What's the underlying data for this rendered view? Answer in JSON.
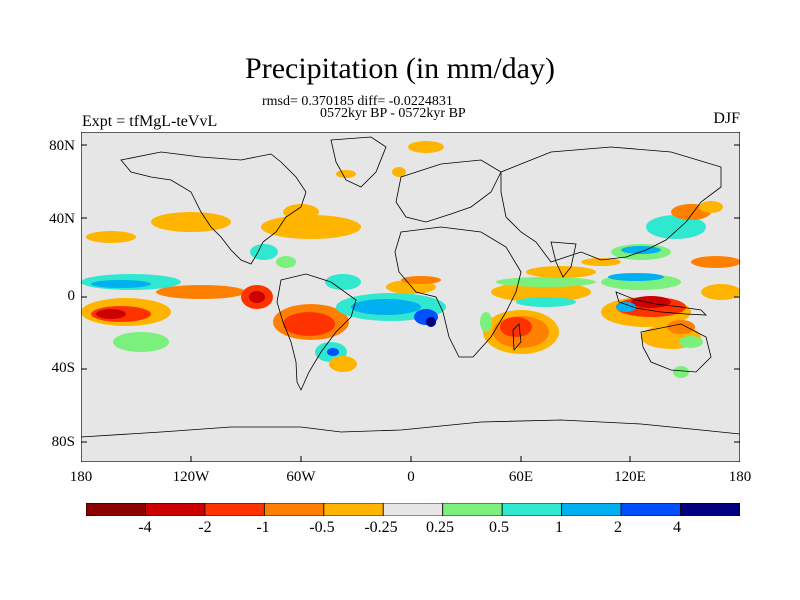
{
  "title": "Precipitation (in mm/day)",
  "stats_line": "rmsd= 0.370185 diff= -0.0224831",
  "period_line": "0572kyr BP - 0572kyr BP",
  "expt_label": "Expt = tfMgL-teVvL",
  "season_label": "DJF",
  "lat_ticks": [
    "80N",
    "40N",
    "0",
    "40S",
    "80S"
  ],
  "lon_ticks": [
    "180",
    "120W",
    "60W",
    "0",
    "60E",
    "120E",
    "180"
  ],
  "colorbar": {
    "labels": [
      "-4",
      "-2",
      "-1",
      "-0.5",
      "-0.25",
      "0.25",
      "0.5",
      "1",
      "2",
      "4"
    ],
    "colors": [
      "#8b0000",
      "#cc0000",
      "#ff3300",
      "#ff8000",
      "#ffb400",
      "#e6e6e6",
      "#7cf07c",
      "#30e8d0",
      "#00b0f0",
      "#0050ff",
      "#000080"
    ]
  }
}
